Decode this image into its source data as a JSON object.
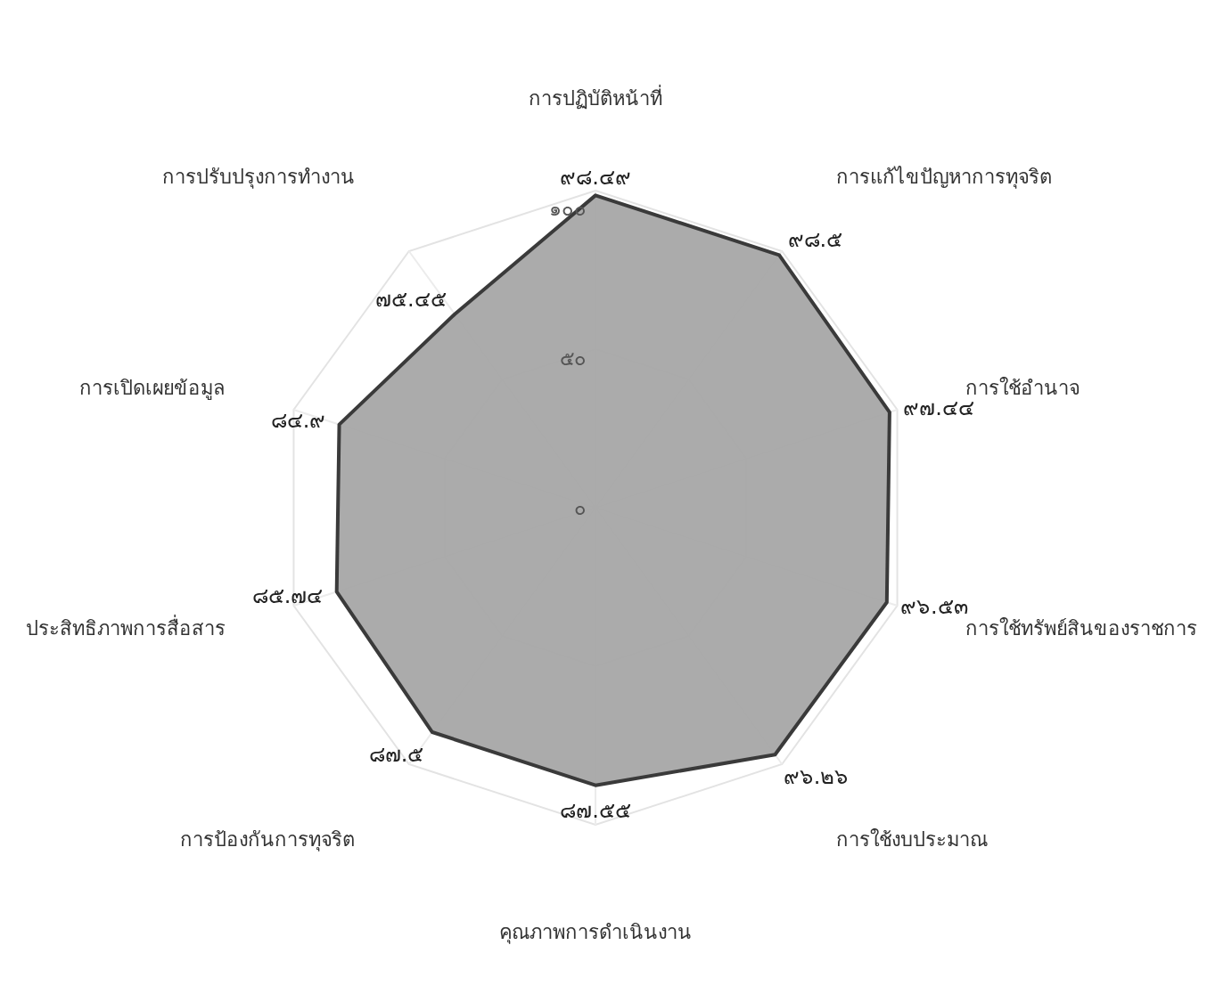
{
  "chart_data": {
    "type": "radar",
    "categories": [
      "การปฏิบัติหน้าที่",
      "การแก้ไขปัญหาการทุจริต",
      "การใช้อำนาจ",
      "การใช้ทรัพย์สินของราชการ",
      "การใช้งบประมาณ",
      "คุณภาพการดำเนินงาน",
      "การป้องกันการทุจริต",
      "ประสิทธิภาพการสื่อสาร",
      "การเปิดเผยข้อมูล",
      "การปรับปรุงการทำงาน"
    ],
    "series": [
      {
        "color": "#a6a6a6",
        "values": [
          98.49,
          98.5,
          97.44,
          96.53,
          96.26,
          87.55,
          87.5,
          85.74,
          84.9,
          75.45
        ],
        "value_labels": [
          "๙๘.๔๙",
          "๙๘.๕",
          "๙๗.๔๔",
          "๙๖.๕๓",
          "๙๖.๒๖",
          "๘๗.๕๕",
          "๘๗.๕",
          "๘๕.๗๔",
          "๘๔.๙",
          "๗๕.๔๕"
        ]
      }
    ],
    "ylim": [
      0,
      100
    ],
    "yticks": [
      {
        "value": 0,
        "label": "๐"
      },
      {
        "value": 50,
        "label": "๕๐"
      },
      {
        "value": 100,
        "label": "๑๐๐"
      }
    ],
    "grid": true
  }
}
